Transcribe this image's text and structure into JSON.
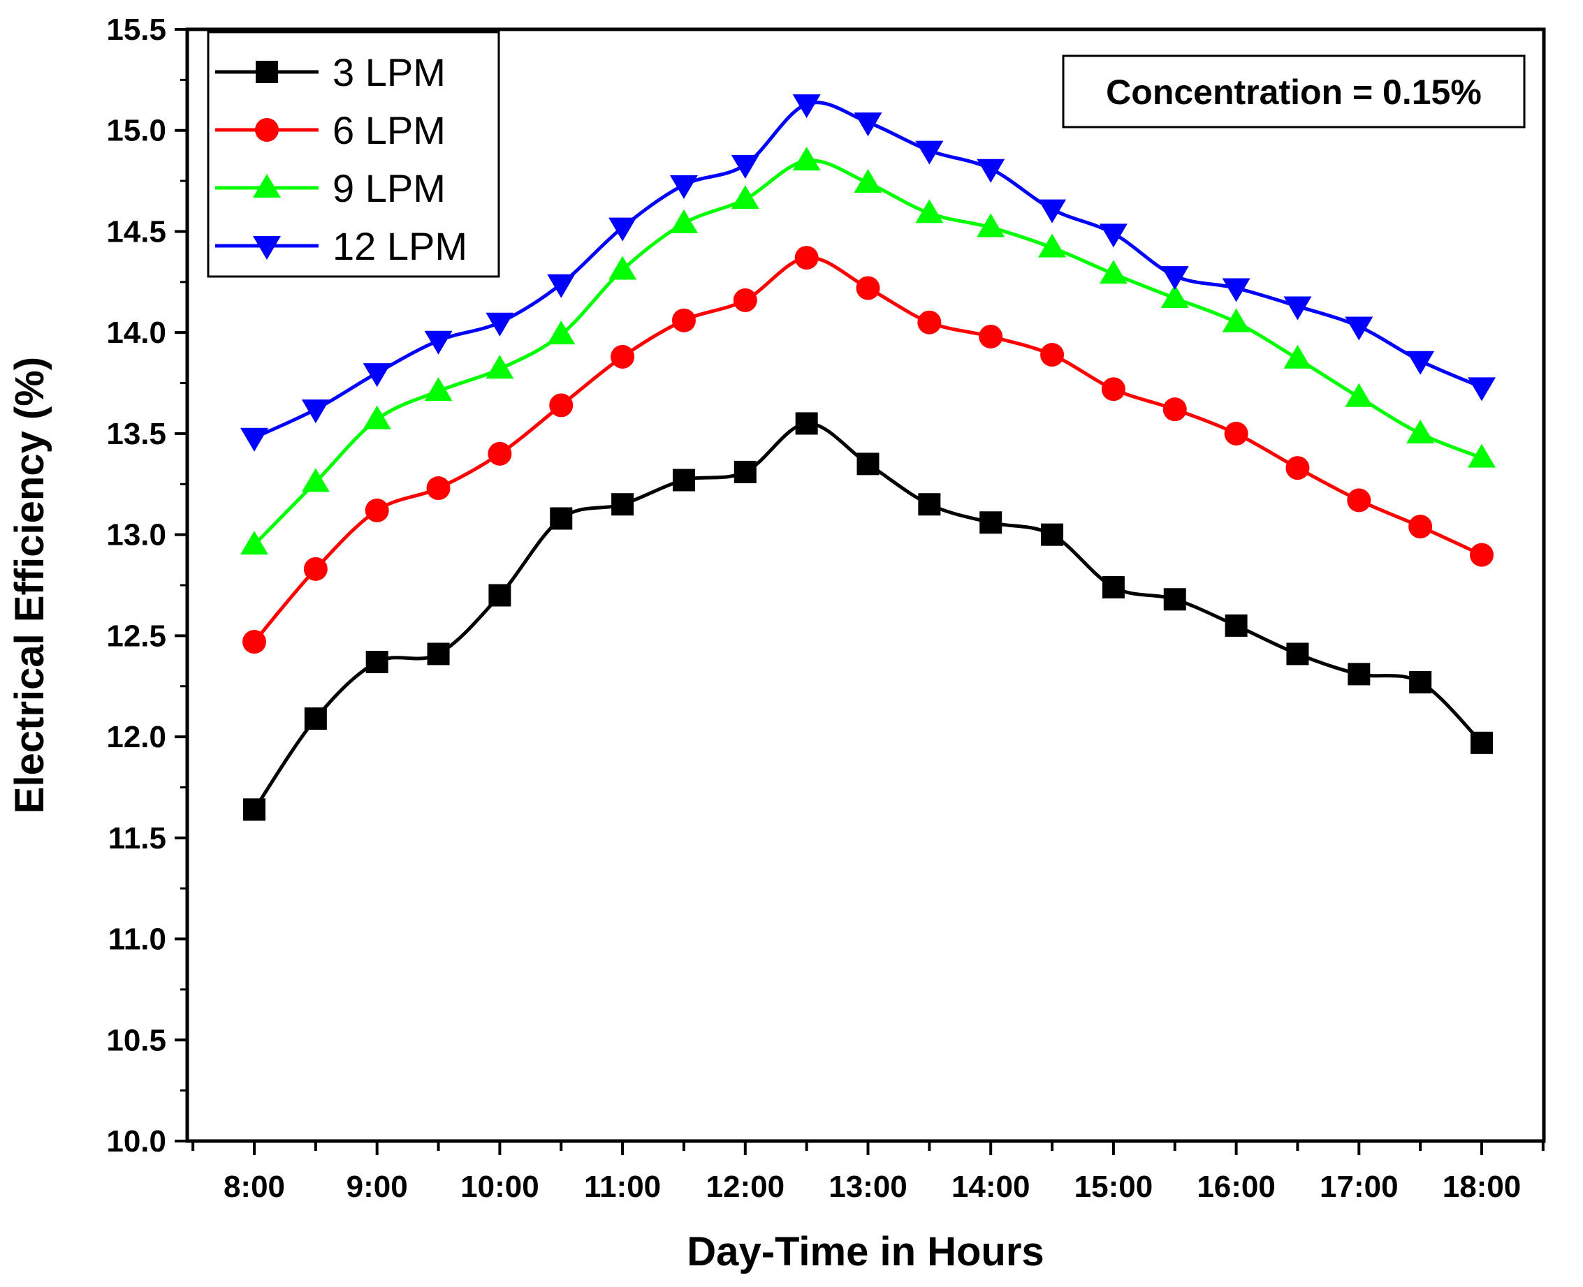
{
  "chart_data": {
    "type": "line",
    "xlabel": "Day-Time in Hours",
    "ylabel": "Electrical Efficiency (%)",
    "annotation": "Concentration = 0.15%",
    "ylim": [
      10.0,
      15.5
    ],
    "yticks": [
      "10.0",
      "10.5",
      "11.0",
      "11.5",
      "12.0",
      "12.5",
      "13.0",
      "13.5",
      "14.0",
      "14.5",
      "15.0",
      "15.5"
    ],
    "categories": [
      "8:00",
      "8:30",
      "9:00",
      "9:30",
      "10:00",
      "10:30",
      "11:00",
      "11:30",
      "12:00",
      "12:30",
      "13:00",
      "13:30",
      "14:00",
      "14:30",
      "15:00",
      "15:30",
      "16:00",
      "16:30",
      "17:00",
      "17:30",
      "18:00"
    ],
    "xtick_labels": [
      "8:00",
      "9:00",
      "10:00",
      "11:00",
      "12:00",
      "13:00",
      "14:00",
      "15:00",
      "16:00",
      "17:00",
      "18:00"
    ],
    "legend_position": "top-left",
    "series": [
      {
        "name": "3 LPM",
        "color": "#000000",
        "marker": "square",
        "values": [
          11.64,
          12.09,
          12.37,
          12.41,
          12.7,
          13.08,
          13.15,
          13.27,
          13.31,
          13.55,
          13.35,
          13.15,
          13.06,
          13.0,
          12.74,
          12.68,
          12.55,
          12.41,
          12.31,
          12.27,
          11.97
        ]
      },
      {
        "name": "6 LPM",
        "color": "#ff0000",
        "marker": "circle",
        "values": [
          12.47,
          12.83,
          13.12,
          13.23,
          13.4,
          13.64,
          13.88,
          14.06,
          14.16,
          14.37,
          14.22,
          14.05,
          13.98,
          13.89,
          13.72,
          13.62,
          13.5,
          13.33,
          13.17,
          13.04,
          12.9
        ]
      },
      {
        "name": "9 LPM",
        "color": "#00ff00",
        "marker": "triangle-up",
        "values": [
          12.95,
          13.26,
          13.57,
          13.71,
          13.82,
          13.99,
          14.31,
          14.54,
          14.66,
          14.85,
          14.74,
          14.59,
          14.52,
          14.42,
          14.29,
          14.17,
          14.05,
          13.87,
          13.68,
          13.5,
          13.38
        ]
      },
      {
        "name": "12 LPM",
        "color": "#0000ff",
        "marker": "triangle-down",
        "values": [
          13.48,
          13.62,
          13.8,
          13.96,
          14.05,
          14.24,
          14.52,
          14.73,
          14.83,
          15.13,
          15.04,
          14.9,
          14.81,
          14.61,
          14.49,
          14.28,
          14.22,
          14.13,
          14.03,
          13.86,
          13.73
        ]
      }
    ]
  }
}
